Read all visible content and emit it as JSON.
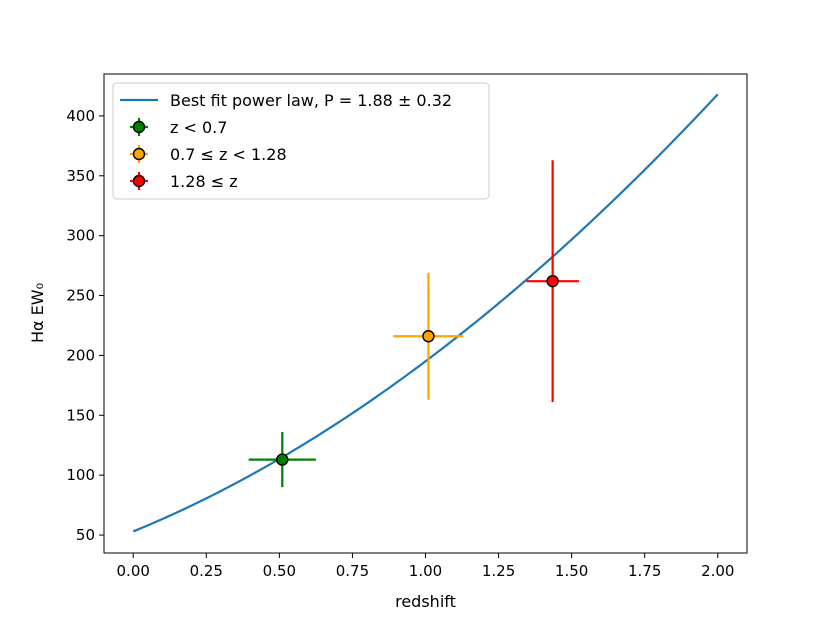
{
  "chart_data": {
    "type": "scatter",
    "xlabel": "redshift",
    "ylabel": "Hα EW₀",
    "xlim": [
      -0.1,
      2.1
    ],
    "ylim": [
      35,
      435
    ],
    "x_ticks": [
      0.0,
      0.25,
      0.5,
      0.75,
      1.0,
      1.25,
      1.5,
      1.75,
      2.0
    ],
    "x_tick_labels": [
      "0.00",
      "0.25",
      "0.50",
      "0.75",
      "1.00",
      "1.25",
      "1.50",
      "1.75",
      "2.00"
    ],
    "y_ticks": [
      50,
      100,
      150,
      200,
      250,
      300,
      350,
      400
    ],
    "y_tick_labels": [
      "50",
      "100",
      "150",
      "200",
      "250",
      "300",
      "350",
      "400"
    ],
    "grid": false,
    "legend_position": "top-left",
    "fit_line": {
      "label": "Best fit power law, P = 1.88 ± 0.32",
      "color": "#1f77b4",
      "model": "A * (1 + z)^P",
      "A": 53,
      "P": 1.88,
      "x_range": [
        0.0,
        2.0
      ]
    },
    "series": [
      {
        "name": "z < 0.7",
        "color": "#008000",
        "x": 0.51,
        "y": 113,
        "xerr": 0.115,
        "yerr": 23
      },
      {
        "name": "0.7 ≤ z < 1.28",
        "color": "#ffa500",
        "x": 1.01,
        "y": 216,
        "xerr": 0.12,
        "yerr": 53
      },
      {
        "name": "1.28 ≤ z",
        "color": "#ff0000",
        "x": 1.435,
        "y": 262,
        "xerr": 0.09,
        "yerr": 101
      }
    ]
  }
}
